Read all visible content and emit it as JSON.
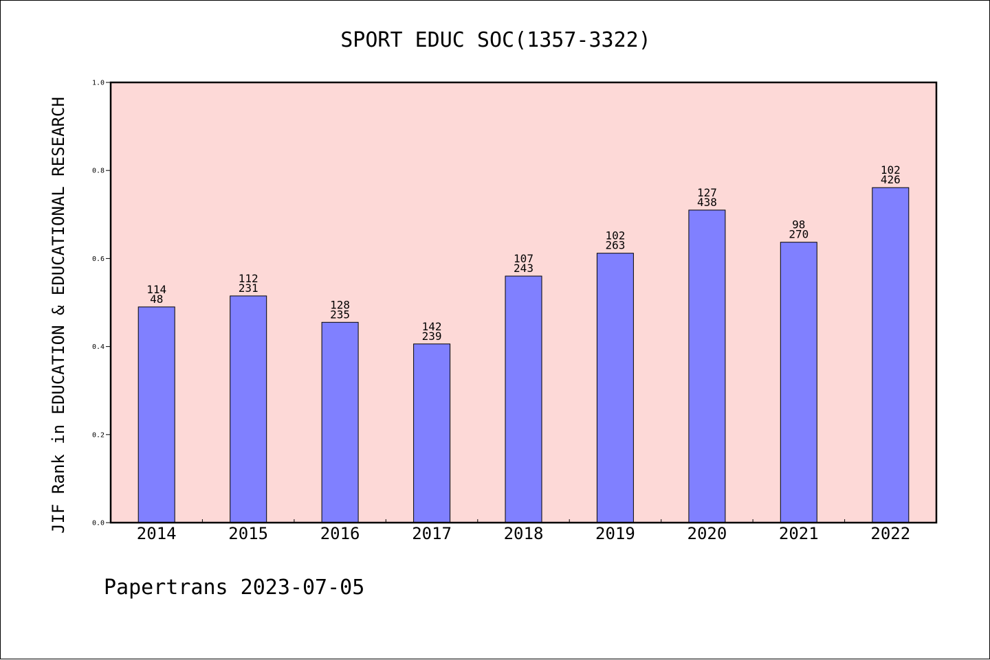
{
  "chart_data": {
    "type": "bar",
    "title": "SPORT EDUC SOC(1357-3322)",
    "xlabel": "",
    "ylabel": "JIF Rank in EDUCATION & EDUCATIONAL RESEARCH",
    "categories": [
      "2014",
      "2015",
      "2016",
      "2017",
      "2018",
      "2019",
      "2020",
      "2021",
      "2022"
    ],
    "values": [
      0.49,
      0.515,
      0.455,
      0.406,
      0.56,
      0.612,
      0.71,
      0.637,
      0.761
    ],
    "rank_labels": [
      "114",
      "112",
      "128",
      "142",
      "107",
      "102",
      "127",
      "98",
      "102"
    ],
    "total_labels": [
      "48",
      "231",
      "235",
      "239",
      "243",
      "263",
      "438",
      "270",
      "426"
    ],
    "ylim": [
      0,
      1
    ],
    "yticks": [
      "0.0",
      "0.2",
      "0.4",
      "0.6",
      "0.8",
      "1.0"
    ],
    "grid": false,
    "colors": {
      "plot_background": "#fdd9d7",
      "bar_fill": "#8080ff",
      "bar_edge": "#000000"
    }
  },
  "footer": "Papertrans 2023-07-05"
}
